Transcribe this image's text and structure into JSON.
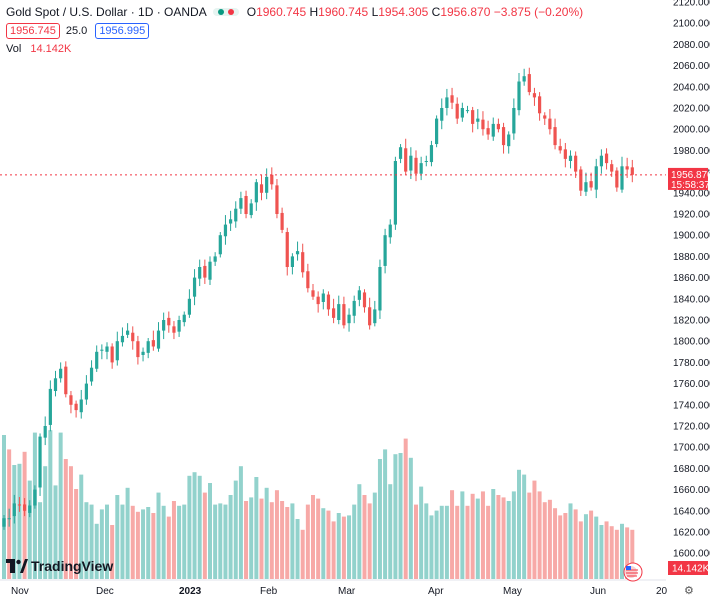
{
  "header": {
    "symbol": "Gold Spot / U.S. Dollar · 1D · OANDA",
    "ohlc": {
      "o_label": "O",
      "o": "1960.745",
      "h_label": "H",
      "h": "1960.745",
      "l_label": "L",
      "l": "1954.305",
      "c_label": "C",
      "c": "1956.870",
      "change": "−3.875 (−0.20%)"
    },
    "sell_price": "1956.745",
    "spread": "25.0",
    "buy_price": "1956.995",
    "volume_label": "Vol",
    "volume_value": "14.142K"
  },
  "branding": "TradingView",
  "colors": {
    "up": "#26a69a",
    "down": "#ef5350",
    "vol_up": "#92d2cc",
    "vol_down": "#f7a9a7",
    "accent": "#2962ff"
  },
  "chart_data": {
    "type": "candlestick",
    "y_ticks": [
      1600,
      1620,
      1640,
      1660,
      1680,
      1700,
      1720,
      1740,
      1760,
      1780,
      1800,
      1820,
      1840,
      1860,
      1880,
      1900,
      1920,
      1940,
      1960,
      1980,
      2000,
      2020,
      2040,
      2060,
      2080,
      2100,
      2120
    ],
    "y_range": [
      1590,
      2125
    ],
    "x_labels": [
      "Nov",
      "Dec",
      "2023",
      "Feb",
      "Mar",
      "Apr",
      "May",
      "Jun",
      "20"
    ],
    "last_price_label": "1956.870",
    "countdown_label": "15:58:37",
    "volume_last_label": "14.142K",
    "close_series": [
      1633,
      1633,
      1647,
      1645,
      1640,
      1645,
      1660,
      1710,
      1720,
      1755,
      1765,
      1774,
      1750,
      1740,
      1735,
      1745,
      1760,
      1775,
      1790,
      1792,
      1795,
      1780,
      1800,
      1805,
      1810,
      1800,
      1785,
      1790,
      1800,
      1795,
      1810,
      1820,
      1815,
      1808,
      1820,
      1825,
      1840,
      1860,
      1870,
      1860,
      1875,
      1880,
      1900,
      1910,
      1915,
      1925,
      1935,
      1920,
      1930,
      1950,
      1940,
      1955,
      1948,
      1920,
      1905,
      1870,
      1880,
      1885,
      1865,
      1850,
      1842,
      1835,
      1845,
      1830,
      1822,
      1835,
      1815,
      1825,
      1838,
      1848,
      1832,
      1815,
      1830,
      1870,
      1900,
      1910,
      1970,
      1983,
      1960,
      1975,
      1958,
      1968,
      1970,
      1985,
      2010,
      2020,
      2030,
      2025,
      2010,
      2020,
      2018,
      2005,
      2010,
      2000,
      1995,
      2005,
      2000,
      1985,
      1995,
      2020,
      2045,
      2050,
      2035,
      2030,
      2015,
      2010,
      2000,
      1985,
      1980,
      1972,
      1975,
      1960,
      1942,
      1950,
      1945,
      1965,
      1975,
      1968,
      1960,
      1945,
      1965,
      1962,
      1957
    ],
    "volume_series": [
      120,
      108,
      95,
      96,
      106,
      82,
      122,
      64,
      94,
      124,
      78,
      122,
      100,
      94,
      75,
      87,
      64,
      62,
      46,
      58,
      62,
      45,
      70,
      62,
      76,
      61,
      56,
      58,
      60,
      55,
      72,
      61,
      52,
      65,
      61,
      62,
      86,
      89,
      86,
      72,
      80,
      62,
      63,
      62,
      70,
      82,
      94,
      65,
      68,
      85,
      67,
      76,
      64,
      74,
      65,
      60,
      63,
      50,
      41,
      62,
      70,
      67,
      59,
      57,
      48,
      55,
      52,
      53,
      62,
      79,
      70,
      63,
      72,
      100,
      108,
      79,
      104,
      105,
      117,
      101,
      62,
      77,
      63,
      53,
      57,
      61,
      61,
      74,
      61,
      73,
      61,
      71,
      67,
      73,
      61,
      75,
      70,
      68,
      65,
      73,
      91,
      87,
      72,
      82,
      73,
      64,
      66,
      59,
      53,
      55,
      63,
      58,
      48,
      54,
      57,
      52,
      45,
      48,
      44,
      41,
      46,
      43,
      41
    ],
    "volume_up_flags": [
      1,
      0,
      1,
      1,
      0,
      1,
      1,
      1,
      1,
      1,
      1,
      1,
      0,
      0,
      0,
      1,
      1,
      1,
      1,
      1,
      1,
      0,
      1,
      1,
      1,
      0,
      0,
      1,
      1,
      0,
      1,
      1,
      0,
      0,
      1,
      1,
      1,
      1,
      1,
      0,
      1,
      1,
      1,
      1,
      1,
      1,
      1,
      0,
      1,
      1,
      0,
      1,
      0,
      0,
      0,
      0,
      1,
      1,
      0,
      0,
      0,
      0,
      1,
      0,
      0,
      1,
      0,
      1,
      1,
      1,
      0,
      0,
      1,
      1,
      1,
      1,
      1,
      1,
      0,
      1,
      0,
      1,
      1,
      1,
      1,
      1,
      1,
      0,
      0,
      1,
      0,
      0,
      1,
      0,
      0,
      1,
      0,
      0,
      1,
      1,
      1,
      1,
      0,
      0,
      0,
      0,
      0,
      0,
      0,
      0,
      1,
      0,
      0,
      1,
      0,
      1,
      1,
      0,
      0,
      0,
      1,
      0,
      0
    ]
  }
}
